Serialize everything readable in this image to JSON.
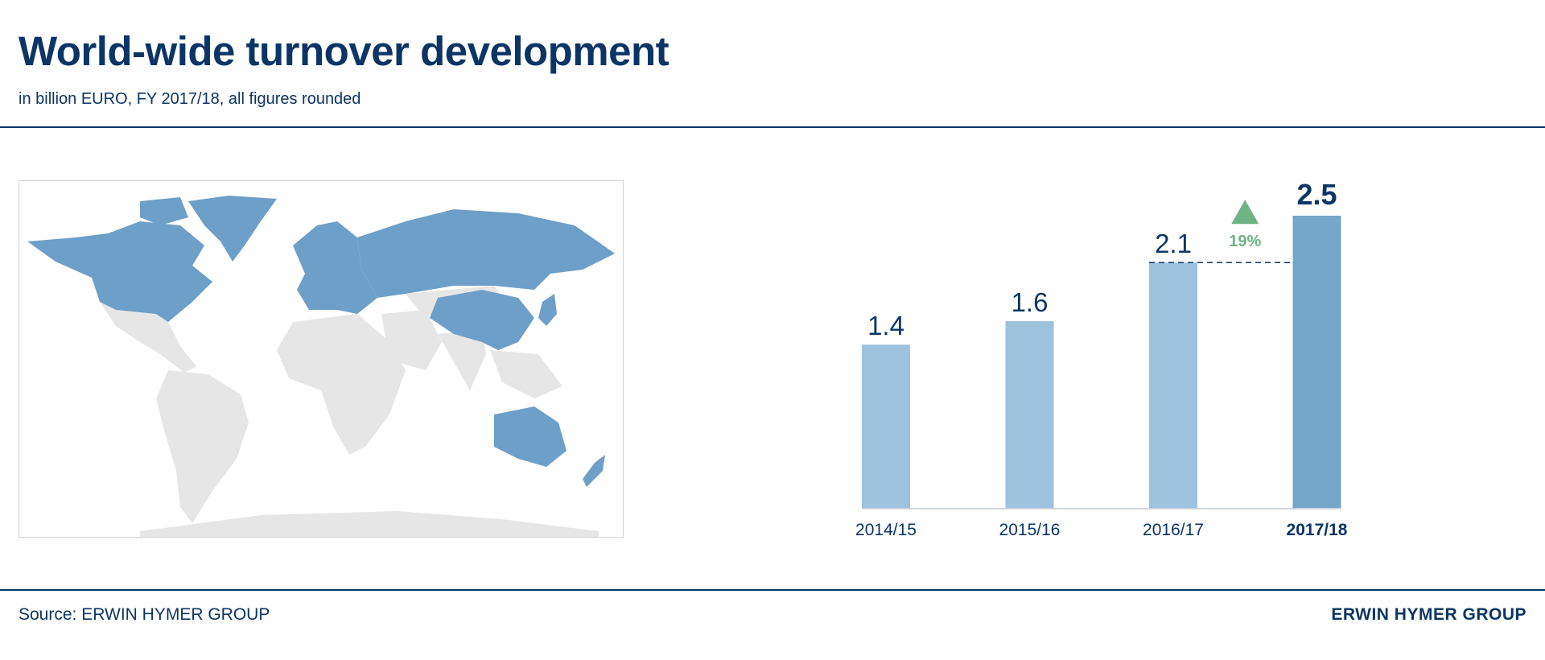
{
  "header": {
    "title": "World-wide turnover development",
    "subtitle": "in billion EURO, FY 2017/18, all figures rounded"
  },
  "footer": {
    "source": "Source: ERWIN HYMER GROUP",
    "brand": "ERWIN HYMER GROUP"
  },
  "colors": {
    "brand_blue": "#0c3566",
    "bar_light": "#9dc2de",
    "bar_highlight": "#75a5c9",
    "map_active": "#6e9fc8",
    "map_inactive": "#e6e6e6",
    "growth_green": "#6db386"
  },
  "map": {
    "highlighted_regions": [
      "North America",
      "Europe",
      "Russia",
      "China",
      "Japan",
      "Australia",
      "New Zealand"
    ]
  },
  "chart_data": {
    "type": "bar",
    "categories": [
      "2014/15",
      "2015/16",
      "2016/17",
      "2017/18"
    ],
    "values": [
      1.4,
      1.6,
      2.1,
      2.5
    ],
    "value_labels": [
      "1.4",
      "1.6",
      "2.1",
      "2.5"
    ],
    "highlight_index": 3,
    "ylim": [
      0,
      2.5
    ],
    "grid": false,
    "growth": {
      "from_index": 2,
      "to_index": 3,
      "label": "19%",
      "direction": "up"
    }
  }
}
